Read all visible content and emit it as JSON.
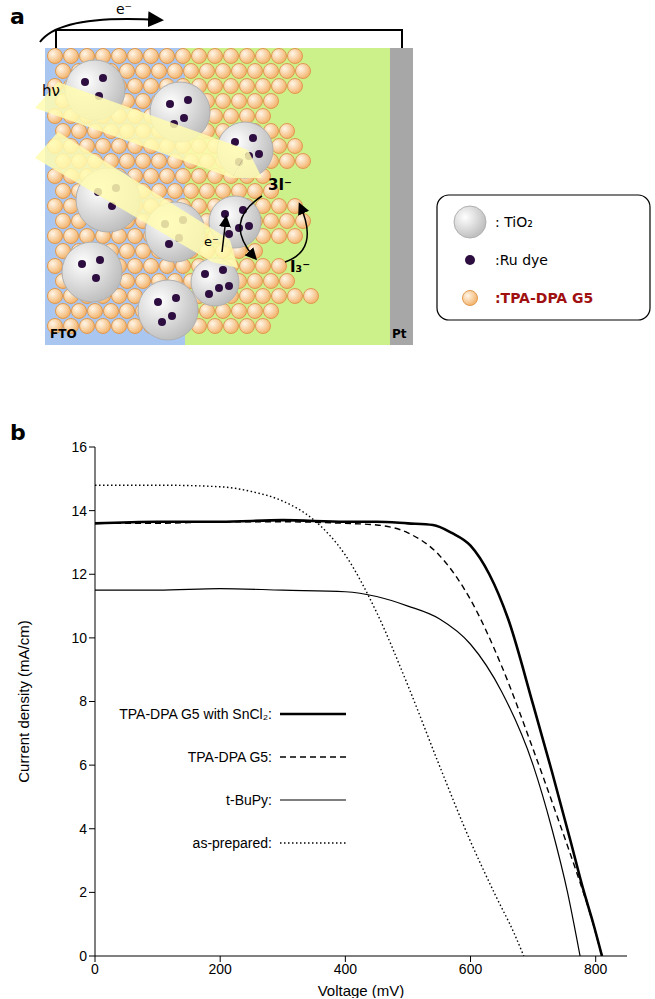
{
  "diagram": {
    "panel_label": "a",
    "circuit_electron": "e⁻",
    "light": "hν",
    "injection_electron": "e⁻",
    "redox_oxidized": "3I⁻",
    "redox_reduced": "I₃⁻",
    "left_electrode": "FTO",
    "right_electrode": "Pt",
    "legend": [
      {
        "shape": "TiO2",
        "label": ": TiO₂"
      },
      {
        "shape": "Ru dye",
        "label": ":Ru dye"
      },
      {
        "shape": "TPA-DPA G5",
        "label": ":TPA-DPA G5"
      }
    ]
  },
  "chart_data": {
    "panel_label": "b",
    "type": "line",
    "x_label": "Voltage (mV)",
    "y_label": "Current density (mA/cm)",
    "xlim": [
      0,
      850
    ],
    "xticks": [
      0,
      200,
      400,
      600,
      800
    ],
    "ylim": [
      0,
      16
    ],
    "yticks": [
      0,
      2,
      4,
      6,
      8,
      10,
      12,
      14,
      16
    ],
    "grid": false,
    "legend": "lower left",
    "series": [
      {
        "name": "TPA-DPA G5 with SnCl₂:",
        "color": "#000000",
        "line_style": "thick",
        "x": [
          0,
          100,
          200,
          300,
          400,
          450,
          500,
          540,
          570,
          600,
          630,
          660,
          700,
          730,
          760,
          780,
          795,
          810
        ],
        "values": [
          13.6,
          13.65,
          13.65,
          13.7,
          13.65,
          13.65,
          13.6,
          13.55,
          13.3,
          12.9,
          12.0,
          10.6,
          7.9,
          5.8,
          3.6,
          2.1,
          1.1,
          0
        ]
      },
      {
        "name": "TPA-DPA G5:",
        "color": "#000000",
        "line_style": "dashed",
        "x": [
          0,
          100,
          200,
          300,
          400,
          450,
          500,
          550,
          600,
          650,
          700,
          740,
          770,
          790,
          810
        ],
        "values": [
          13.6,
          13.6,
          13.65,
          13.65,
          13.6,
          13.55,
          13.3,
          12.6,
          11.2,
          9.1,
          6.5,
          4.3,
          2.6,
          1.4,
          0
        ]
      },
      {
        "name": "t-BuPy:",
        "color": "#000000",
        "line_style": "solid",
        "x": [
          0,
          100,
          200,
          300,
          400,
          450,
          500,
          550,
          600,
          650,
          700,
          730,
          755,
          775
        ],
        "values": [
          11.5,
          11.5,
          11.55,
          11.5,
          11.45,
          11.3,
          11.0,
          10.6,
          9.8,
          8.3,
          6.0,
          4.0,
          2.0,
          0
        ]
      },
      {
        "name": "as-prepared:",
        "color": "#000000",
        "line_style": "dotted",
        "x": [
          0,
          100,
          200,
          250,
          300,
          350,
          400,
          450,
          500,
          550,
          600,
          640,
          670,
          685
        ],
        "values": [
          14.8,
          14.8,
          14.75,
          14.6,
          14.3,
          13.7,
          12.6,
          10.8,
          8.5,
          6.0,
          3.6,
          1.9,
          0.7,
          0
        ]
      }
    ]
  }
}
